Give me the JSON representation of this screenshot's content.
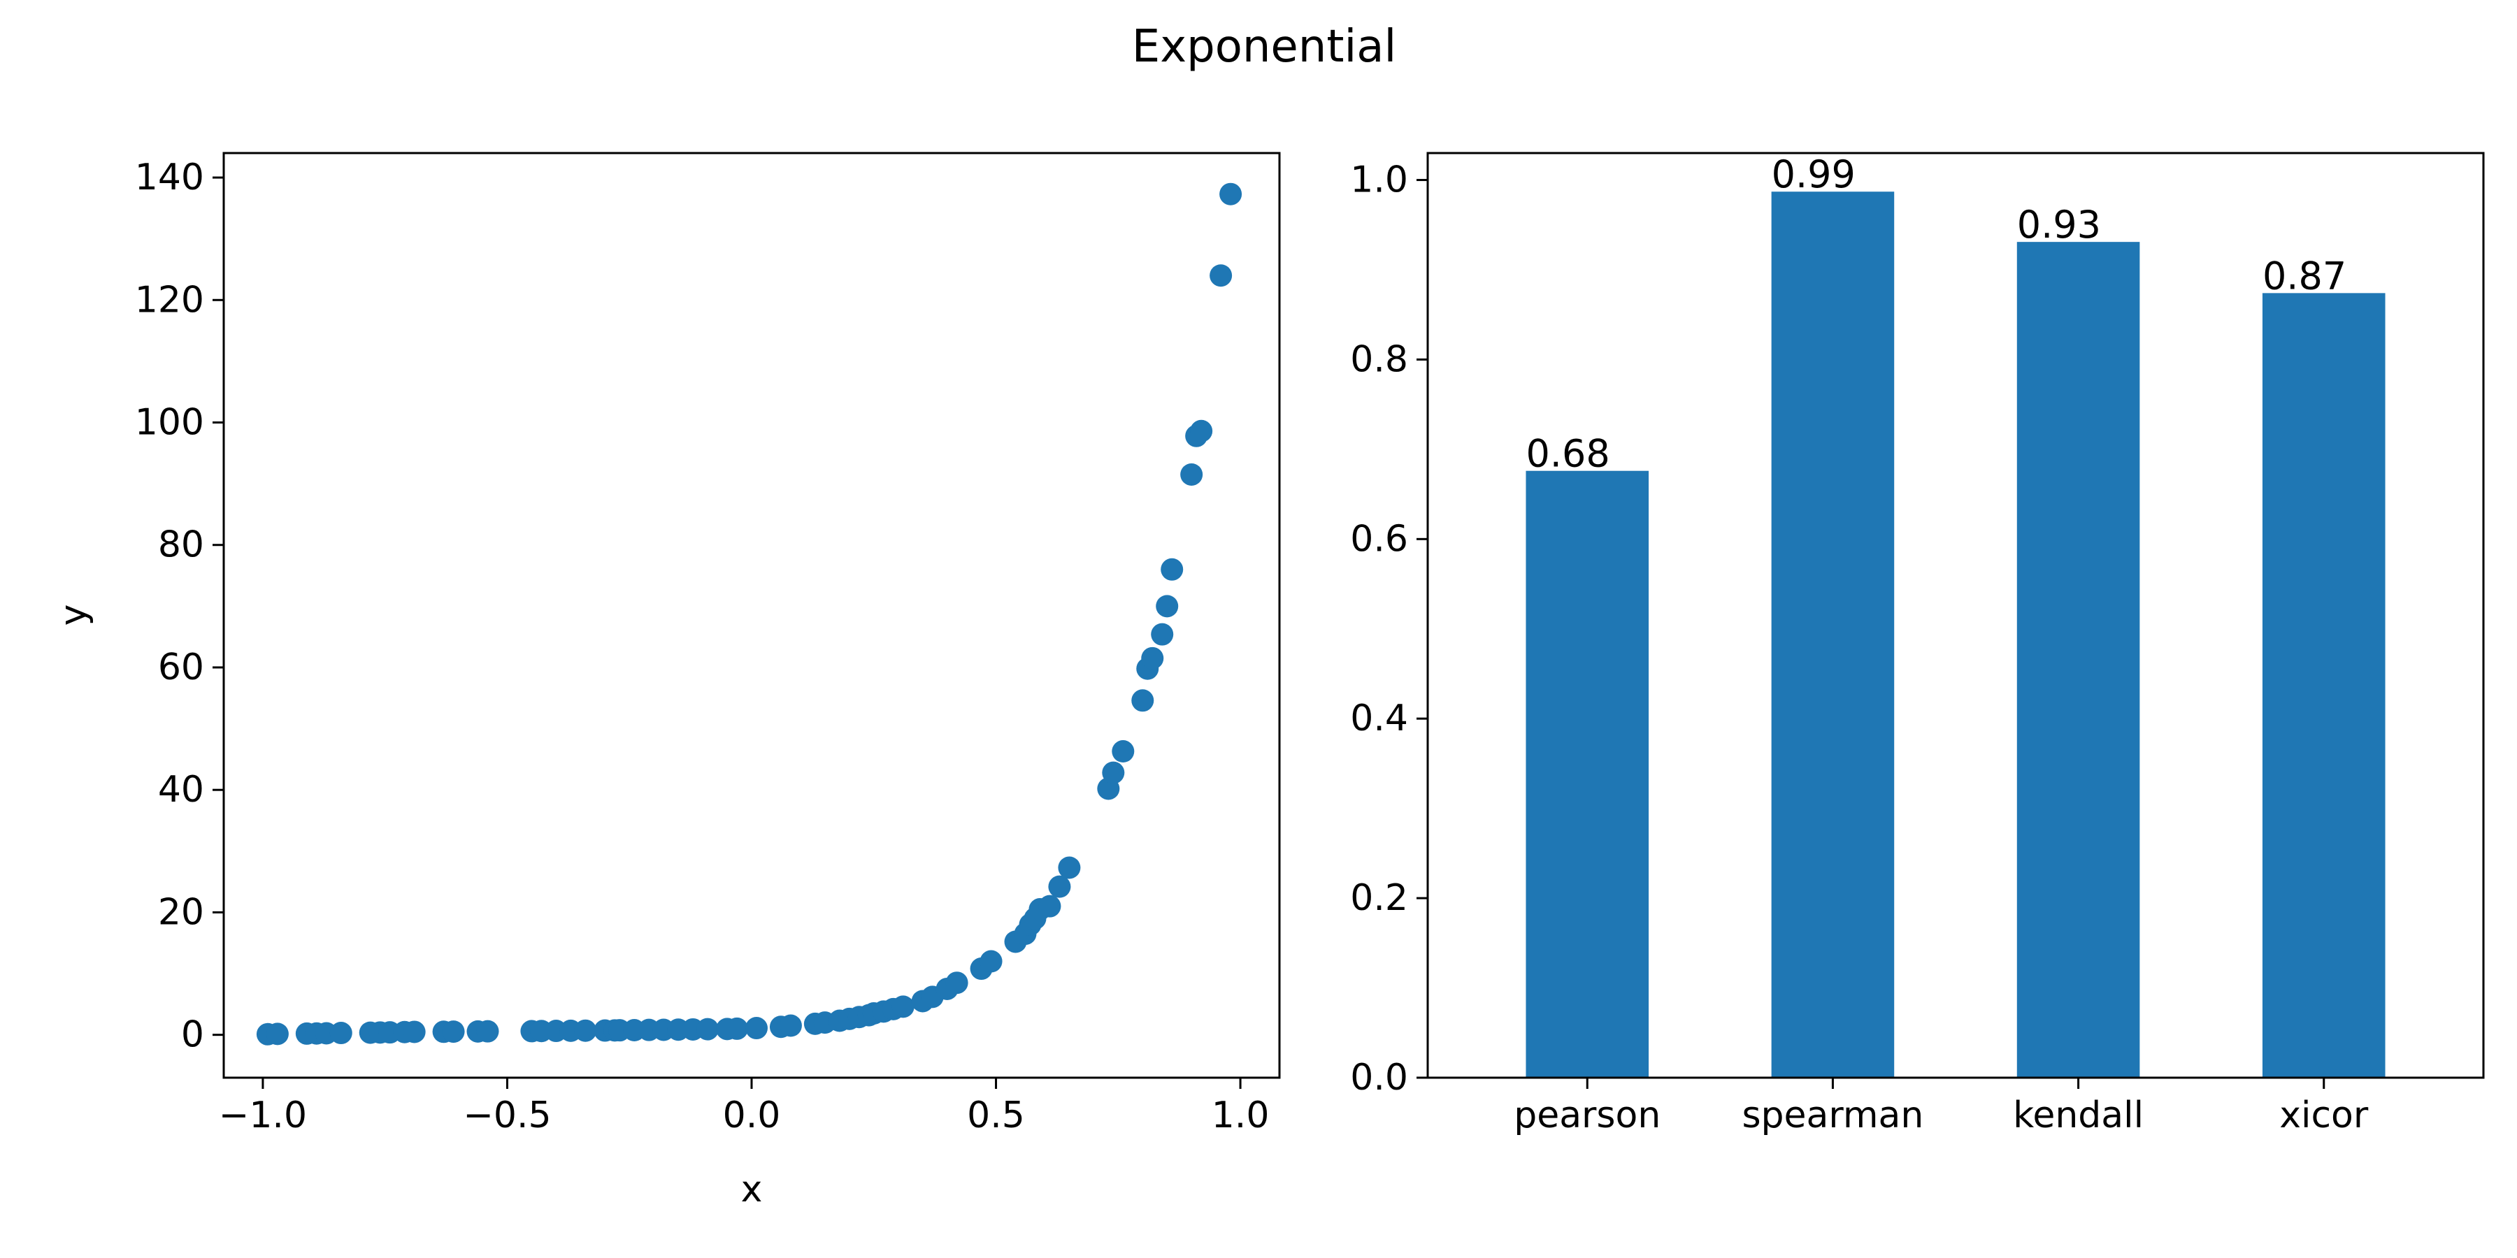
{
  "figure": {
    "title": "Exponential"
  },
  "colors": {
    "marker": "#1f77b4",
    "bar": "#1f77b4",
    "axes": "#000000",
    "background": "#ffffff"
  },
  "chart_data": [
    {
      "type": "scatter",
      "title": "",
      "xlabel": "x",
      "ylabel": "y",
      "xlim": [
        -1.08,
        1.08
      ],
      "ylim": [
        -7,
        144
      ],
      "xticks": [
        -1.0,
        -0.5,
        0.0,
        0.5,
        1.0
      ],
      "xtick_labels": [
        "−1.0",
        "−0.5",
        "0.0",
        "0.5",
        "1.0"
      ],
      "yticks": [
        0,
        20,
        40,
        60,
        80,
        100,
        120,
        140
      ],
      "ytick_labels": [
        "0",
        "20",
        "40",
        "60",
        "80",
        "100",
        "120",
        "140"
      ],
      "grid": false,
      "series": [
        {
          "x": [
            -0.99,
            -0.97,
            -0.91,
            -0.89,
            -0.87,
            -0.84,
            -0.78,
            -0.76,
            -0.74,
            -0.71,
            -0.69,
            -0.63,
            -0.61,
            -0.56,
            -0.54,
            -0.45,
            -0.43,
            -0.4,
            -0.37,
            -0.34,
            -0.3,
            -0.28,
            -0.27,
            -0.24,
            -0.21,
            -0.18,
            -0.15,
            -0.12,
            -0.09,
            -0.05,
            -0.03,
            0.01,
            0.06,
            0.08,
            0.13,
            0.15,
            0.18,
            0.2,
            0.22,
            0.24,
            0.25,
            0.27,
            0.29,
            0.31,
            0.35,
            0.37,
            0.4,
            0.42,
            0.47,
            0.49,
            0.54,
            0.56,
            0.57,
            0.58,
            0.59,
            0.61,
            0.63,
            0.65,
            0.73,
            0.74,
            0.76,
            0.8,
            0.81,
            0.82,
            0.84,
            0.85,
            0.86,
            0.9,
            0.91,
            0.92,
            0.96,
            0.98
          ],
          "y": [
            0.1,
            0.15,
            0.2,
            0.22,
            0.25,
            0.3,
            0.35,
            0.38,
            0.4,
            0.45,
            0.48,
            0.5,
            0.52,
            0.55,
            0.57,
            0.6,
            0.62,
            0.64,
            0.66,
            0.68,
            0.7,
            0.72,
            0.74,
            0.76,
            0.8,
            0.82,
            0.85,
            0.88,
            0.92,
            0.95,
            1.0,
            1.1,
            1.3,
            1.5,
            1.8,
            2.0,
            2.3,
            2.6,
            2.9,
            3.2,
            3.5,
            3.8,
            4.2,
            4.6,
            5.5,
            6.2,
            7.5,
            8.5,
            10.8,
            12.0,
            15.2,
            16.5,
            18.0,
            19.0,
            20.5,
            21.0,
            24.2,
            27.3,
            40.2,
            42.8,
            46.3,
            54.6,
            59.8,
            61.5,
            65.4,
            70.0,
            76.0,
            91.5,
            97.8,
            98.6,
            124.0,
            137.3
          ]
        }
      ]
    },
    {
      "type": "bar",
      "title": "",
      "xlabel": "",
      "ylabel": "",
      "categories": [
        "pearson",
        "spearman",
        "kendall",
        "xicor"
      ],
      "values": [
        0.676,
        0.987,
        0.931,
        0.874
      ],
      "value_labels": [
        "0.68",
        "0.99",
        "0.93",
        "0.87"
      ],
      "ylim": [
        0.0,
        1.03
      ],
      "yticks": [
        0.0,
        0.2,
        0.4,
        0.6,
        0.8,
        1.0
      ],
      "ytick_labels": [
        "0.0",
        "0.2",
        "0.4",
        "0.6",
        "0.8",
        "1.0"
      ],
      "grid": false
    }
  ]
}
